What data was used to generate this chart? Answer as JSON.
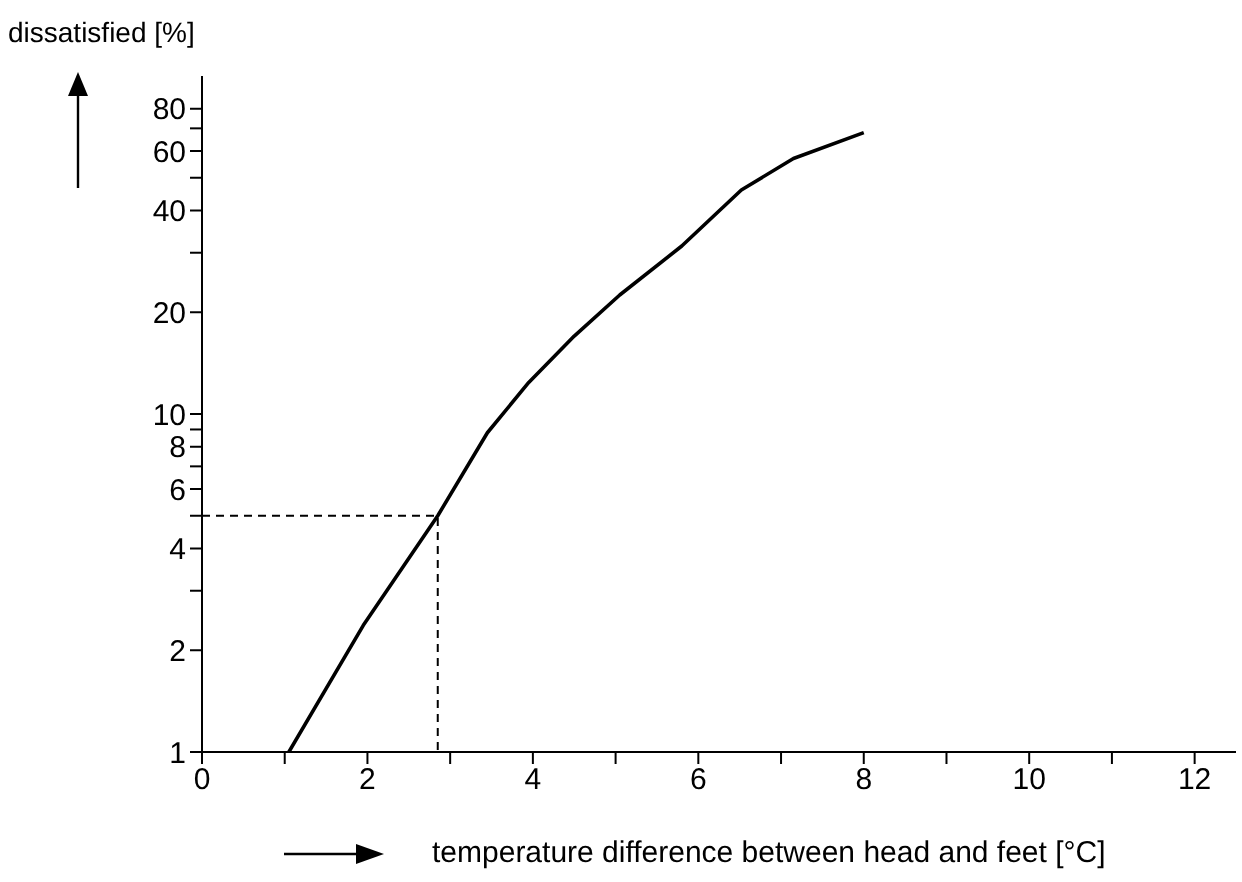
{
  "chart_data": {
    "type": "line",
    "xlabel": "temperature difference between head and feet [°C]",
    "ylabel": "dissatisfied [%]",
    "xlim": [
      0,
      12.5
    ],
    "xticks": [
      0,
      {
        "value": 1,
        "label": null
      },
      2,
      {
        "value": 3,
        "label": null
      },
      4,
      {
        "value": 5,
        "label": null
      },
      6,
      {
        "value": 7,
        "label": null
      },
      8,
      {
        "value": 9,
        "label": null
      },
      10,
      {
        "value": 11,
        "label": null
      },
      12
    ],
    "ylim": [
      1,
      100
    ],
    "yticks": [
      1,
      2,
      {
        "value": 3,
        "label": null
      },
      4,
      {
        "value": 5,
        "label": null
      },
      6,
      {
        "value": 7,
        "label": null
      },
      8,
      {
        "value": 9,
        "label": null
      },
      10,
      20,
      {
        "value": 30,
        "label": null
      },
      40,
      {
        "value": 50,
        "label": null
      },
      60,
      {
        "value": 70,
        "label": null
      },
      80
    ],
    "log": "y",
    "grid": false,
    "series": [
      {
        "color": "#000000",
        "x": [
          1.05,
          1.95,
          2.85,
          3.45,
          3.95,
          4.5,
          5.05,
          5.8,
          6.52,
          7.15,
          8.0
        ],
        "values": [
          1,
          2.37,
          5,
          8.8,
          12.4,
          17,
          22.5,
          31.4,
          46,
          57,
          68
        ],
        "line_style": "solid"
      },
      {
        "color": "#000000",
        "x": [
          0,
          2.85,
          2.85
        ],
        "values": [
          5,
          5,
          1
        ],
        "line_style": "dashed"
      }
    ]
  }
}
